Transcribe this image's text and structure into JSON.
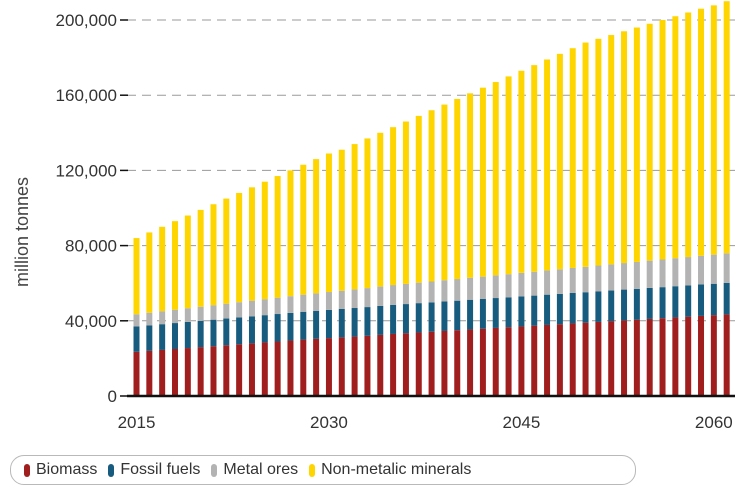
{
  "chart_data": {
    "type": "bar",
    "stacked": true,
    "title": "",
    "xlabel": "",
    "ylabel": "million tonnes",
    "x": [
      2015,
      2016,
      2017,
      2018,
      2019,
      2020,
      2021,
      2022,
      2023,
      2024,
      2025,
      2026,
      2027,
      2028,
      2029,
      2030,
      2031,
      2032,
      2033,
      2034,
      2035,
      2036,
      2037,
      2038,
      2039,
      2040,
      2041,
      2042,
      2043,
      2044,
      2045,
      2046,
      2047,
      2048,
      2049,
      2050,
      2051,
      2052,
      2053,
      2054,
      2055,
      2056,
      2057,
      2058,
      2059,
      2060,
      2061
    ],
    "x_ticks": [
      "2015",
      "2030",
      "2045",
      "2060"
    ],
    "y_ticks": [
      "0",
      "40,000",
      "80,000",
      "120,000",
      "160,000",
      "200,000"
    ],
    "ylim": [
      0,
      200000
    ],
    "grid": "horizontal dashed",
    "legend_position": "bottom",
    "series": [
      {
        "name": "Biomass",
        "color": "#a01e1e",
        "values": [
          23500,
          24000,
          24500,
          25000,
          25500,
          26000,
          26500,
          27000,
          27500,
          28000,
          28500,
          29000,
          29500,
          30000,
          30400,
          30800,
          31200,
          31600,
          32000,
          32500,
          33000,
          33400,
          33800,
          34200,
          34600,
          35000,
          35400,
          35800,
          36200,
          36600,
          37000,
          37400,
          37800,
          38200,
          38600,
          39000,
          39400,
          39800,
          40200,
          40600,
          41000,
          41400,
          41800,
          42200,
          42600,
          43000,
          43400
        ]
      },
      {
        "name": "Fossil fuels",
        "color": "#175c7e",
        "values": [
          13500,
          13600,
          13700,
          13800,
          13900,
          14000,
          14100,
          14200,
          14300,
          14400,
          14500,
          14600,
          14700,
          14800,
          14900,
          15000,
          15100,
          15200,
          15300,
          15400,
          15500,
          15500,
          15600,
          15600,
          15700,
          15700,
          15800,
          15800,
          15900,
          15900,
          16000,
          16000,
          16100,
          16100,
          16200,
          16200,
          16300,
          16300,
          16400,
          16400,
          16500,
          16500,
          16600,
          16600,
          16700,
          16700,
          16800
        ]
      },
      {
        "name": "Metal ores",
        "color": "#b3b3b3",
        "values": [
          6500,
          6700,
          6900,
          7100,
          7300,
          7500,
          7700,
          7900,
          8100,
          8300,
          8500,
          8700,
          8900,
          9100,
          9300,
          9500,
          9700,
          9900,
          10100,
          10300,
          10500,
          10700,
          10900,
          11100,
          11300,
          11500,
          11700,
          11900,
          12100,
          12300,
          12500,
          12700,
          12900,
          13100,
          13300,
          13500,
          13700,
          13900,
          14100,
          14300,
          14500,
          14700,
          14900,
          15100,
          15300,
          15500,
          15700
        ]
      },
      {
        "name": "Non-metalic minerals",
        "color": "#ffd500",
        "values": [
          40500,
          42700,
          44900,
          47100,
          49300,
          51500,
          53700,
          55900,
          58100,
          60300,
          62500,
          64700,
          66900,
          69100,
          71400,
          73700,
          75000,
          77300,
          79600,
          81800,
          84000,
          86400,
          88700,
          91100,
          93400,
          95800,
          98100,
          100500,
          102800,
          105200,
          107500,
          109900,
          112200,
          114600,
          116900,
          119300,
          120600,
          122000,
          123300,
          124700,
          126000,
          127400,
          128700,
          130100,
          131400,
          132600,
          134100
        ]
      }
    ]
  }
}
